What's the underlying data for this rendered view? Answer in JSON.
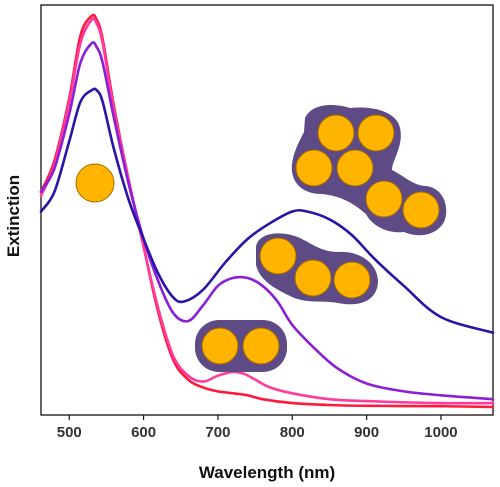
{
  "chart_data": {
    "type": "line",
    "title": "",
    "xlabel": "Wavelength (nm)",
    "ylabel": "Extinction",
    "xlim": [
      462,
      1070
    ],
    "ylim": [
      0,
      1.0
    ],
    "xticks": [
      500,
      600,
      700,
      800,
      900,
      1000
    ],
    "yticks": [],
    "grid": false,
    "legend": "none",
    "series": [
      {
        "color": "#ff1a3c",
        "x": [
          462,
          480,
          500,
          515,
          530,
          537,
          545,
          560,
          580,
          600,
          620,
          640,
          660,
          680,
          700,
          720,
          740,
          760,
          800,
          850,
          900,
          1000,
          1070
        ],
        "y": [
          0.55,
          0.63,
          0.79,
          0.95,
          1.0,
          0.99,
          0.94,
          0.77,
          0.58,
          0.41,
          0.24,
          0.12,
          0.07,
          0.05,
          0.04,
          0.035,
          0.03,
          0.02,
          0.01,
          0.005,
          0.003,
          0.002,
          0.0
        ]
      },
      {
        "color": "#ff3b9e",
        "x": [
          462,
          480,
          500,
          515,
          530,
          537,
          545,
          560,
          580,
          600,
          620,
          640,
          660,
          680,
          700,
          720,
          735,
          750,
          770,
          800,
          850,
          900,
          1000,
          1070
        ],
        "y": [
          0.54,
          0.62,
          0.78,
          0.93,
          0.99,
          0.98,
          0.93,
          0.76,
          0.58,
          0.41,
          0.25,
          0.13,
          0.08,
          0.065,
          0.08,
          0.09,
          0.085,
          0.07,
          0.05,
          0.035,
          0.02,
          0.015,
          0.01,
          0.01
        ]
      },
      {
        "color": "#8a1fd6",
        "x": [
          462,
          480,
          500,
          515,
          530,
          537,
          545,
          560,
          580,
          600,
          620,
          640,
          660,
          680,
          700,
          720,
          740,
          760,
          780,
          800,
          830,
          860,
          900,
          950,
          1000,
          1070
        ],
        "y": [
          0.55,
          0.61,
          0.75,
          0.88,
          0.93,
          0.92,
          0.88,
          0.74,
          0.57,
          0.43,
          0.32,
          0.24,
          0.22,
          0.26,
          0.31,
          0.33,
          0.33,
          0.31,
          0.27,
          0.21,
          0.15,
          0.1,
          0.06,
          0.04,
          0.03,
          0.02
        ]
      },
      {
        "color": "#2a14a8",
        "x": [
          462,
          480,
          500,
          515,
          530,
          537,
          545,
          560,
          580,
          600,
          620,
          640,
          655,
          680,
          710,
          740,
          770,
          800,
          820,
          850,
          880,
          910,
          950,
          1000,
          1070
        ],
        "y": [
          0.5,
          0.55,
          0.68,
          0.78,
          0.81,
          0.81,
          0.78,
          0.66,
          0.53,
          0.43,
          0.34,
          0.28,
          0.27,
          0.3,
          0.37,
          0.43,
          0.47,
          0.5,
          0.5,
          0.48,
          0.44,
          0.38,
          0.31,
          0.23,
          0.19
        ]
      }
    ],
    "annotations": [
      {
        "name": "monomer",
        "count": 1
      },
      {
        "name": "dimer",
        "count": 2
      },
      {
        "name": "trimer-chain",
        "count": 3
      },
      {
        "name": "large-cluster",
        "count": 6
      }
    ],
    "colors": {
      "particle_fill": "#ffb400",
      "particle_stroke": "#a86c00",
      "shell": "#5e4a84"
    }
  }
}
